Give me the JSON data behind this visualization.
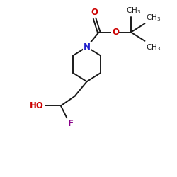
{
  "background_color": "#ffffff",
  "bond_color": "#1a1a1a",
  "N_color": "#2222cc",
  "O_color": "#cc0000",
  "F_color": "#880088",
  "HO_color": "#cc0000",
  "figsize": [
    2.5,
    2.5
  ],
  "dpi": 100,
  "xlim": [
    0,
    10
  ],
  "ylim": [
    0,
    10
  ],
  "bond_lw": 1.4,
  "font_size_atom": 8.5,
  "font_size_group": 7.5
}
